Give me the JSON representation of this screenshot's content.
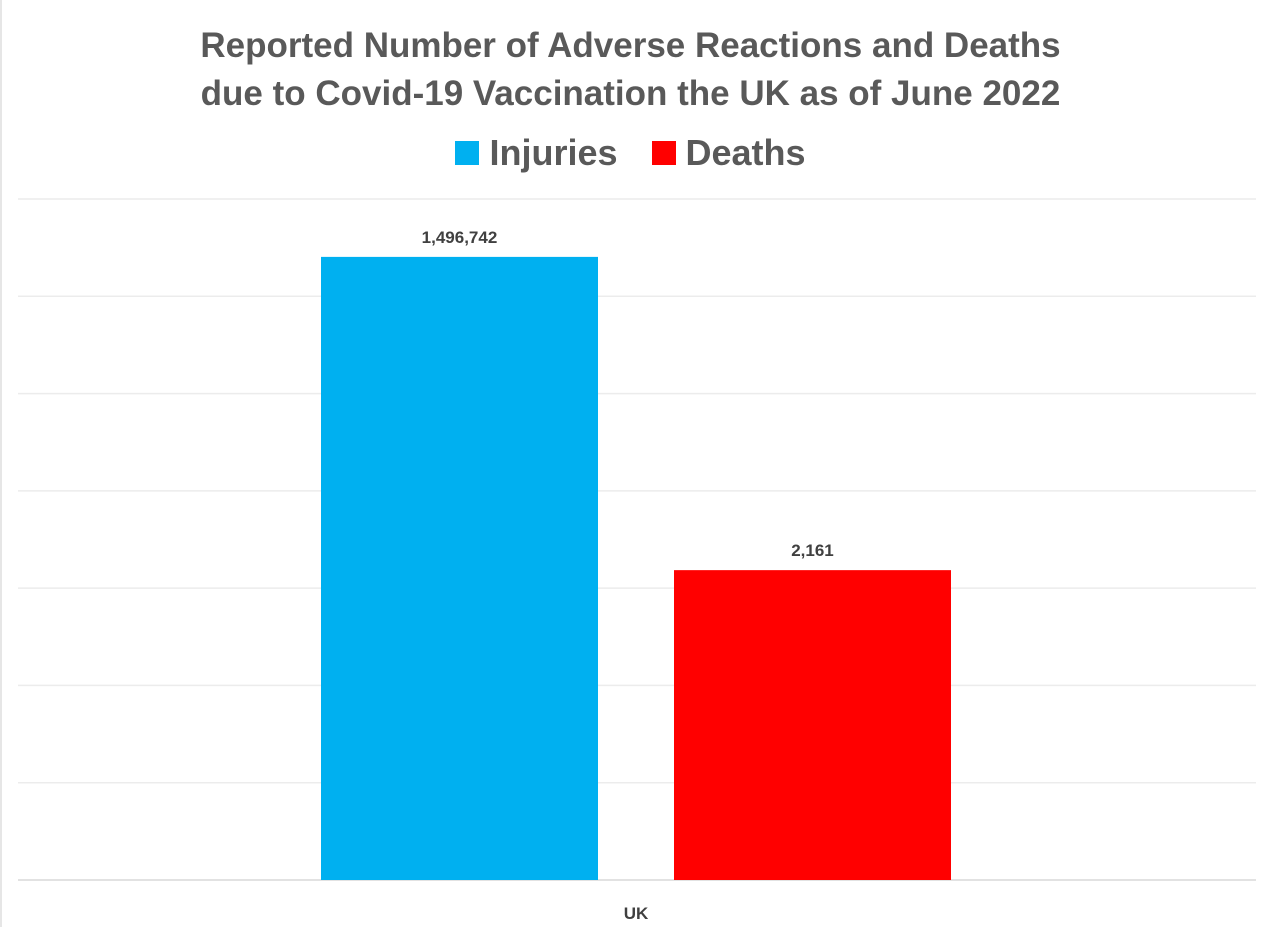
{
  "chart_data": {
    "type": "bar",
    "title_lines": [
      "Reported Number of Adverse Reactions and Deaths",
      "due to Covid-19 Vaccination the UK as of  June 2022"
    ],
    "categories": [
      "UK"
    ],
    "series": [
      {
        "name": "Injuries",
        "values": [
          1496742
        ],
        "value_label": "1,496,742",
        "color": "#00b0f0",
        "display_level": 0.915
      },
      {
        "name": "Deaths",
        "values": [
          2161
        ],
        "value_label": "2,161",
        "color": "#ff0000",
        "display_level": 0.455
      }
    ],
    "xlabel": "",
    "ylabel": "",
    "grid": true,
    "gridline_count": 7,
    "y_axis_labels": false,
    "legend_position": "top-center"
  }
}
